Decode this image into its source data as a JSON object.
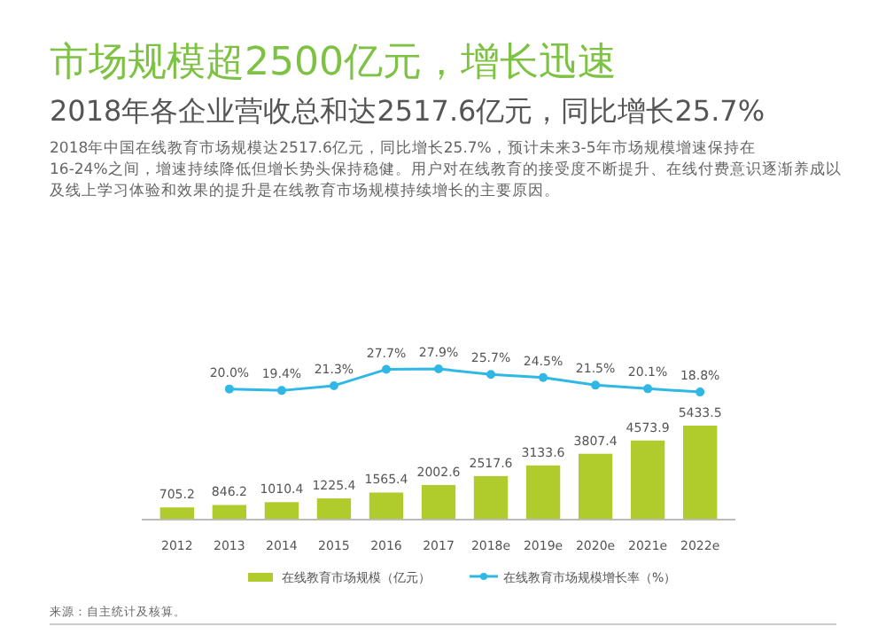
{
  "chart_data": [
    {
      "type": "line",
      "title": "市场规模超2500亿元，增长迅速",
      "subtitle": "2018年各企业营收总和达2517.6亿元，同比增长25.7%",
      "annotations": [
        "2018年中国在线教育市场规模达2517.6亿元，同比增长25.7%，预计未来3-5年市场规模增速保持在16-24%之间，增速持续降低但增长势头保持稳健。用户对在线教育的接受度不断提升、在线付费意识逐渐养成以及线上学习体验和效果的提升是在线教育市场规模持续增长的主要原因。"
      ],
      "categories": [
        null,
        null,
        null,
        null,
        null,
        null,
        null,
        null,
        null,
        null,
        null
      ],
      "series": [
        {
          "name": "在线教育市场规模增长率（%）",
          "color": "#2fb8e6",
          "values": [
            null,
            20.0,
            19.4,
            21.3,
            27.7,
            27.9,
            25.7,
            24.5,
            21.5,
            20.1,
            18.8
          ],
          "value_labels": [
            null,
            "20.0%",
            "19.4%",
            "21.3%",
            "27.7%",
            "27.9%",
            "25.7%",
            "24.5%",
            "21.5%",
            "20.1%",
            "18.8%"
          ]
        }
      ],
      "legend": "bottom",
      "marker": "circle"
    },
    {
      "type": "bar",
      "annotations": [
        "来源：自主统计及核算。"
      ],
      "categories": [
        "2012",
        "2013",
        "2014",
        "2015",
        "2016",
        "2017",
        "2018e",
        "2019e",
        "2020e",
        "2021e",
        "2022e"
      ],
      "series": [
        {
          "name": "在线教育市场规模（亿元）",
          "color": "#b0cb2c",
          "values": [
            705.2,
            846.2,
            1010.4,
            1225.4,
            1565.4,
            2002.6,
            2517.6,
            3133.6,
            3807.4,
            4573.9,
            5433.5
          ]
        }
      ],
      "data_labels": true,
      "legend": "bottom"
    }
  ]
}
